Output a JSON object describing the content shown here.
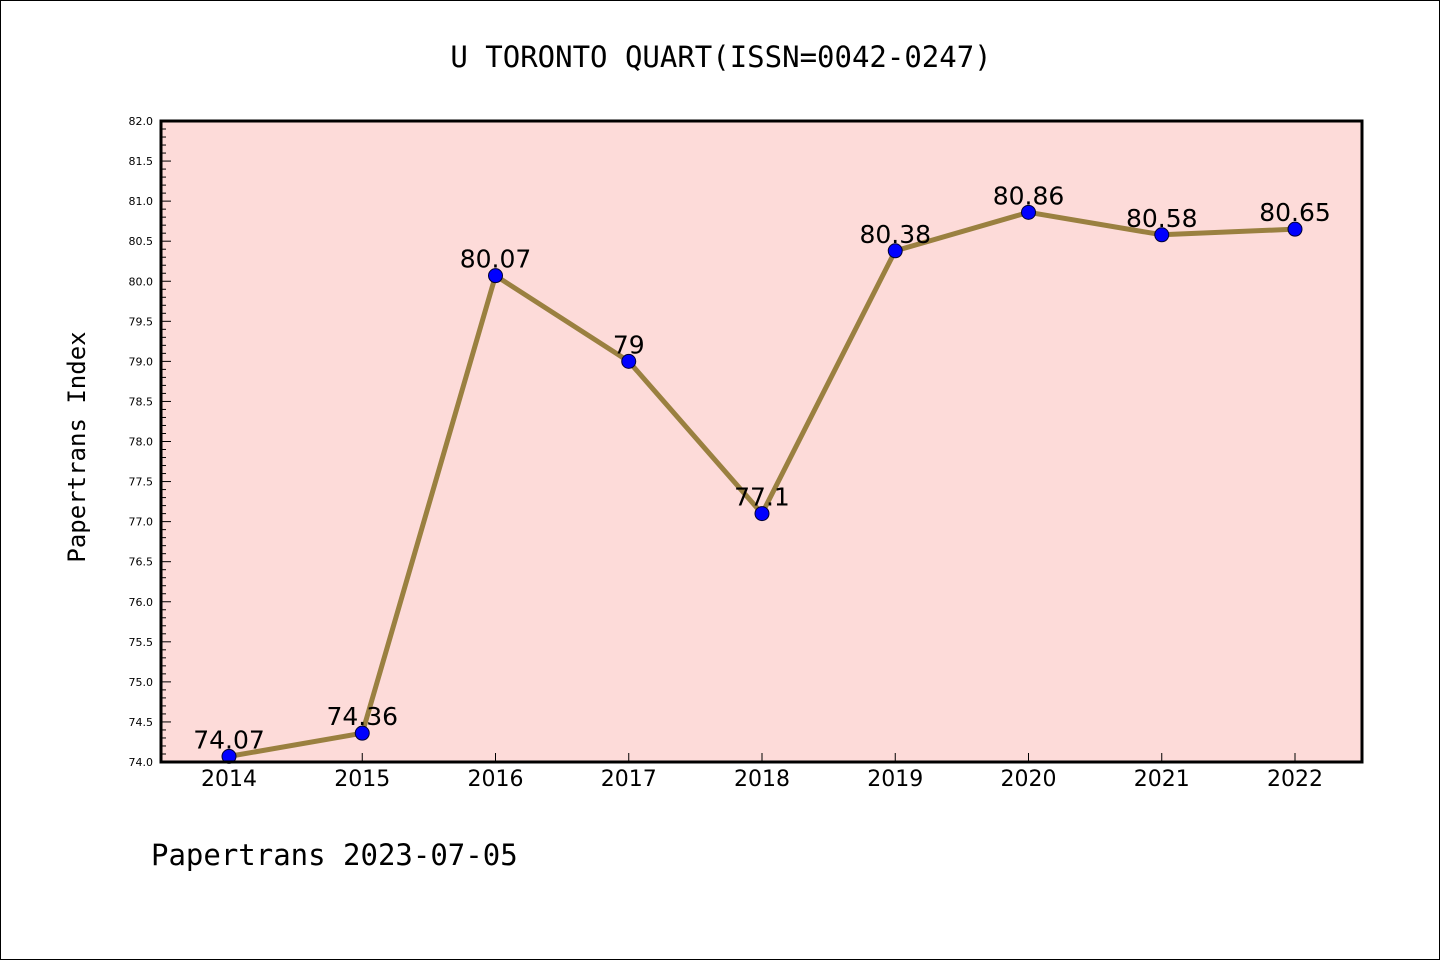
{
  "chart_data": {
    "type": "line",
    "title": "U TORONTO QUART(ISSN=0042-0247)",
    "ylabel": "Papertrans Index",
    "xlabel": "",
    "footer": "Papertrans 2023-07-05",
    "categories": [
      "2014",
      "2015",
      "2016",
      "2017",
      "2018",
      "2019",
      "2020",
      "2021",
      "2022"
    ],
    "series": [
      {
        "values": [
          74.07,
          74.36,
          80.07,
          79,
          77.1,
          80.38,
          80.86,
          80.58,
          80.65
        ],
        "labels": [
          "74.07",
          "74.36",
          "80.07",
          "79",
          "77.1",
          "80.38",
          "80.86",
          "80.58",
          "80.65"
        ]
      }
    ],
    "ylim": [
      74.0,
      82.0
    ],
    "yticks": [
      "74.0",
      "74.5",
      "75.0",
      "75.5",
      "76.0",
      "76.5",
      "77.0",
      "77.5",
      "78.0",
      "78.5",
      "79.0",
      "79.5",
      "80.0",
      "80.5",
      "81.0",
      "81.5",
      "82.0"
    ],
    "grid": false,
    "legend": "none",
    "colors": {
      "plot_background": "#fddbd9",
      "line": "#9a8040",
      "marker": "#0000ff",
      "axes": "#000000"
    }
  }
}
